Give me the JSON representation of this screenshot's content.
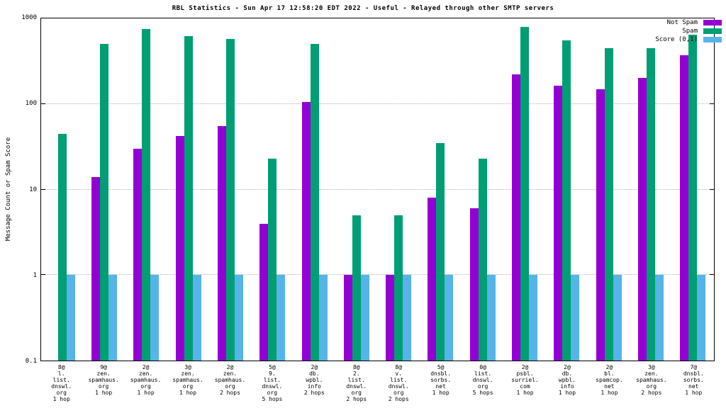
{
  "title": "RBL Statistics - Sun Apr 17 12:58:20 EDT 2022 - Useful - Relayed through other SMTP servers",
  "chart_data": {
    "type": "bar",
    "scale": "log",
    "title": "RBL Statistics - Sun Apr 17 12:58:20 EDT 2022 - Useful - Relayed through other SMTP servers",
    "xlabel": "",
    "ylabel": "Message Count or Spam Score",
    "ylim": [
      0.1,
      1000
    ],
    "yticks": [
      0.1,
      1,
      10,
      100,
      1000
    ],
    "grid": true,
    "legend_position": "top-right",
    "categories": [
      [
        "8@",
        "l.",
        "list.",
        "dnswl.",
        "org",
        "1 hop"
      ],
      [
        "9@",
        "zen.",
        "spamhaus.",
        "org",
        "1 hop"
      ],
      [
        "2@",
        "zen.",
        "spamhaus.",
        "org",
        "1 hop"
      ],
      [
        "3@",
        "zen.",
        "spamhaus.",
        "org",
        "1 hop"
      ],
      [
        "2@",
        "zen.",
        "spamhaus.",
        "org",
        "2 hops"
      ],
      [
        "5@",
        "9.",
        "list.",
        "dnswl.",
        "org",
        "5 hops"
      ],
      [
        "2@",
        "db.",
        "wpbl.",
        "info",
        "2 hops"
      ],
      [
        "8@",
        "2.",
        "list.",
        "dnswl.",
        "org",
        "2 hops"
      ],
      [
        "8@",
        "v.",
        "list.",
        "dnswl.",
        "org",
        "2 hops"
      ],
      [
        "5@",
        "dnsbl.",
        "sorbs.",
        "net",
        "1 hop"
      ],
      [
        "0@",
        "list.",
        "dnswl.",
        "org",
        "5 hops"
      ],
      [
        "2@",
        "psbl.",
        "surriel.",
        "com",
        "1 hop"
      ],
      [
        "2@",
        "db.",
        "wpbl.",
        "info",
        "1 hop"
      ],
      [
        "2@",
        "bl.",
        "spamcop.",
        "net",
        "1 hop"
      ],
      [
        "3@",
        "zen.",
        "spamhaus.",
        "org",
        "2 hops"
      ],
      [
        "7@",
        "dnsbl.",
        "sorbs.",
        "net",
        "1 hop"
      ]
    ],
    "series": [
      {
        "name": "Not Spam",
        "color": "#9400d3",
        "values": [
          null,
          14,
          30,
          42,
          55,
          4,
          105,
          1,
          1,
          8,
          6,
          220,
          165,
          150,
          200,
          370
        ]
      },
      {
        "name": "Spam",
        "color": "#009e73",
        "values": [
          45,
          500,
          750,
          620,
          580,
          23,
          500,
          5,
          5,
          35,
          23,
          800,
          550,
          450,
          450,
          650
        ]
      },
      {
        "name": "Score (0,1)",
        "color": "#56b4e9",
        "values": [
          1,
          1,
          1,
          1,
          1,
          1,
          1,
          1,
          1,
          1,
          1,
          1,
          1,
          1,
          1,
          1
        ]
      }
    ]
  }
}
